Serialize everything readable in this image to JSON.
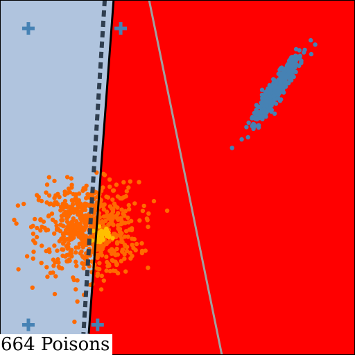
{
  "caption": "664 Poisons",
  "chart_data": {
    "type": "scatter",
    "xlim": [
      -1.0,
      1.0
    ],
    "ylim": [
      -1.0,
      1.0
    ],
    "grid": false,
    "background": {
      "left_region_color": "#b0c4de",
      "right_region_color": "#ff0000"
    },
    "boundaries": [
      {
        "role": "decision-boundary",
        "style": "solid",
        "color": "#000000",
        "points": [
          [
            -0.36,
            1.0
          ],
          [
            -0.5,
            -0.88
          ]
        ]
      },
      {
        "role": "poisoned-boundary",
        "style": "dashed",
        "color": "#2f3e4f",
        "points": [
          [
            -0.41,
            1.0
          ],
          [
            -0.53,
            -0.88
          ]
        ]
      },
      {
        "role": "reference-boundary",
        "style": "solid",
        "color": "#a0a0a0",
        "points": [
          [
            -0.16,
            1.0
          ],
          [
            0.25,
            -1.0
          ]
        ]
      }
    ],
    "series": [
      {
        "marker": "circle",
        "color": "#4682b4",
        "cluster": {
          "center": [
            0.56,
            0.5
          ],
          "spread": [
            0.12,
            0.02
          ],
          "slope_deg": 56,
          "count": 420
        }
      },
      {
        "marker": "circle",
        "color": "#ff6a00",
        "cluster": {
          "center": [
            -0.5,
            -0.29
          ],
          "spread": [
            0.14,
            0.13
          ],
          "count": 664
        }
      },
      {
        "marker": "circle",
        "color": "#ffbf00",
        "cluster": {
          "center": [
            -0.43,
            -0.32
          ],
          "spread": [
            0.025,
            0.02
          ],
          "count": 30
        }
      },
      {
        "marker": "plus",
        "color": "#4682b4",
        "x": [
          -0.84,
          -0.32,
          -0.84,
          -0.45
        ],
        "y": [
          0.84,
          0.84,
          -0.83,
          -0.83
        ]
      }
    ]
  }
}
